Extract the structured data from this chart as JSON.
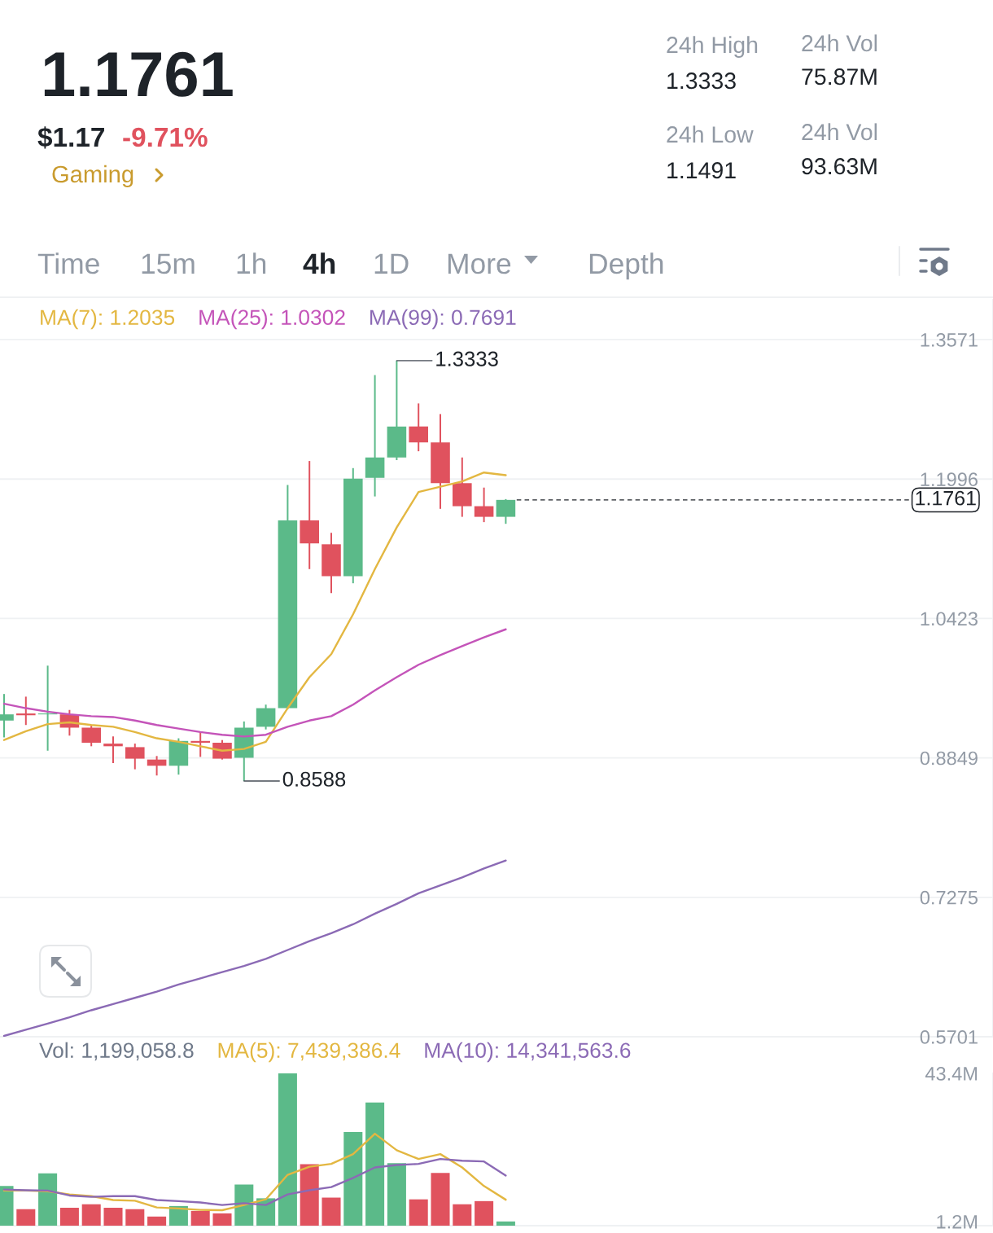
{
  "chart_data": [
    {
      "type": "other",
      "annotations": [
        "1.1761",
        "$1.17",
        "-9.71%",
        "Gaming",
        "24h High",
        "1.3333",
        "24h Vol",
        "75.87M",
        "24h Low",
        "1.1491",
        "24h Vol",
        "93.63M",
        "Time",
        "15m",
        "1h",
        "4h",
        "1D",
        "More",
        "Depth"
      ]
    },
    {
      "type": "candlestick",
      "categories": [
        null,
        null,
        null,
        null,
        null,
        null,
        null,
        null,
        null,
        null,
        null,
        null,
        null,
        null,
        null,
        null,
        null,
        null,
        null,
        null,
        null,
        null,
        null,
        null
      ],
      "ohlc": [
        [
          0.927,
          0.957,
          0.908,
          0.934
        ],
        [
          0.935,
          0.954,
          0.922,
          0.933
        ],
        [
          0.934,
          0.989,
          0.893,
          0.935
        ],
        [
          0.934,
          0.939,
          0.91,
          0.919
        ],
        [
          0.919,
          0.922,
          0.898,
          0.902
        ],
        [
          0.901,
          0.909,
          0.879,
          0.898
        ],
        [
          0.897,
          0.901,
          0.872,
          0.884
        ],
        [
          0.883,
          0.887,
          0.865,
          0.876
        ],
        [
          0.876,
          0.907,
          0.866,
          0.904
        ],
        [
          0.904,
          0.914,
          0.886,
          0.902
        ],
        [
          0.902,
          0.905,
          0.883,
          0.884
        ],
        [
          0.885,
          0.926,
          0.8588,
          0.919
        ],
        [
          0.92,
          0.945,
          0.917,
          0.941
        ],
        [
          0.941,
          1.193,
          0.94,
          1.153
        ],
        [
          1.153,
          1.22,
          1.098,
          1.127
        ],
        [
          1.126,
          1.139,
          1.071,
          1.09
        ],
        [
          1.09,
          1.212,
          1.082,
          1.2
        ],
        [
          1.201,
          1.317,
          1.18,
          1.224
        ],
        [
          1.224,
          1.3333,
          1.221,
          1.259
        ],
        [
          1.259,
          1.285,
          1.231,
          1.241
        ],
        [
          1.241,
          1.273,
          1.166,
          1.195
        ],
        [
          1.195,
          1.224,
          1.157,
          1.169
        ],
        [
          1.169,
          1.19,
          1.151,
          1.157
        ],
        [
          1.157,
          1.177,
          1.1491,
          1.1761
        ]
      ],
      "colors": [
        "#5bba89",
        "#e0525e",
        "#5bba89",
        "#e0525e",
        "#e0525e",
        "#e0525e",
        "#e0525e",
        "#e0525e",
        "#5bba89",
        "#e0525e",
        "#e0525e",
        "#5bba89",
        "#5bba89",
        "#5bba89",
        "#e0525e",
        "#e0525e",
        "#5bba89",
        "#5bba89",
        "#5bba89",
        "#e0525e",
        "#e0525e",
        "#e0525e",
        "#e0525e",
        "#5bba89"
      ],
      "series": [
        {
          "type": "line",
          "name": "MA(7): 1.2035",
          "color": "#e3b741",
          "values": [
            0.905,
            0.915,
            0.923,
            0.925,
            0.922,
            0.92,
            0.914,
            0.907,
            0.903,
            0.898,
            0.893,
            0.895,
            0.903,
            0.941,
            0.976,
            1.002,
            1.047,
            1.098,
            1.145,
            1.185,
            1.191,
            1.197,
            1.207,
            1.204
          ]
        },
        {
          "type": "line",
          "name": "MA(25): 1.0302",
          "color": "#c454b9",
          "values": [
            0.946,
            0.941,
            0.937,
            0.934,
            0.932,
            0.931,
            0.927,
            0.922,
            0.918,
            0.914,
            0.911,
            0.909,
            0.911,
            0.92,
            0.927,
            0.932,
            0.945,
            0.961,
            0.976,
            0.99,
            1.001,
            1.011,
            1.021,
            1.03
          ]
        },
        {
          "type": "line",
          "name": "MA(99): 0.7691",
          "color": "#8b6ab5",
          "values": [
            0.571,
            0.578,
            0.585,
            0.592,
            0.6,
            0.607,
            0.614,
            0.621,
            0.629,
            0.636,
            0.643,
            0.65,
            0.658,
            0.668,
            0.678,
            0.687,
            0.697,
            0.709,
            0.72,
            0.732,
            0.741,
            0.75,
            0.76,
            0.769
          ]
        }
      ],
      "ylim": [
        0.5701,
        1.4021
      ],
      "yticks": [
        0.5701,
        0.7275,
        0.8849,
        1.0423,
        1.1996,
        1.3571
      ],
      "grid": "y",
      "tick_labels": "y",
      "ref_lines": [
        {
          "axis": "y",
          "value": 1.1761,
          "label": "1.1761",
          "line_style": "dashed",
          "color": "#1e2329"
        }
      ],
      "annotations": [
        "1.3333",
        "0.8588"
      ]
    },
    {
      "type": "bar",
      "categories": [
        null,
        null,
        null,
        null,
        null,
        null,
        null,
        null,
        null,
        null,
        null,
        null,
        null,
        null,
        null,
        null,
        null,
        null,
        null,
        null,
        null,
        null,
        null,
        null
      ],
      "series": [
        {
          "colors": [
            "#5bba89",
            "#e0525e",
            "#5bba89",
            "#e0525e",
            "#e0525e",
            "#e0525e",
            "#e0525e",
            "#e0525e",
            "#5bba89",
            "#e0525e",
            "#e0525e",
            "#5bba89",
            "#5bba89",
            "#5bba89",
            "#e0525e",
            "#e0525e",
            "#5bba89",
            "#5bba89",
            "#5bba89",
            "#e0525e",
            "#e0525e",
            "#e0525e",
            "#e0525e",
            "#5bba89"
          ],
          "values": [
            11.3,
            4.7,
            14.9,
            5.1,
            6.1,
            5.1,
            4.7,
            2.6,
            5.6,
            4.2,
            3.5,
            11.7,
            7.8,
            43.4,
            17.5,
            8.0,
            26.7,
            35.1,
            17.8,
            7.5,
            15.0,
            6.1,
            7.0,
            1.2
          ]
        },
        {
          "type": "line",
          "name": "MA(5): 7,439,386.4",
          "color": "#e3b741",
          "values": [
            10.0,
            10.0,
            9.8,
            8.9,
            8.4,
            7.3,
            7.1,
            5.2,
            4.9,
            4.5,
            4.4,
            5.9,
            7.5,
            14.5,
            16.8,
            17.6,
            20.4,
            26.2,
            21.5,
            19.0,
            20.4,
            16.6,
            11.3,
            7.4
          ]
        },
        {
          "type": "line",
          "name": "MA(10): 14,341,563.6",
          "color": "#8b6ab5",
          "values": [
            10.3,
            10.1,
            10.0,
            8.6,
            8.2,
            8.4,
            8.4,
            7.3,
            7.0,
            6.6,
            5.9,
            6.4,
            5.9,
            8.9,
            10.1,
            11.0,
            13.6,
            16.6,
            17.3,
            17.6,
            19.0,
            18.5,
            18.3,
            14.3
          ]
        }
      ],
      "ylim": [
        0,
        43.4
      ],
      "yticks": [
        {
          "value": 1.2,
          "label": "1.2M"
        },
        {
          "value": 43.4,
          "label": "43.4M"
        }
      ],
      "tick_labels": "y",
      "annotations": [
        "Vol: 1,199,058.8"
      ]
    }
  ]
}
